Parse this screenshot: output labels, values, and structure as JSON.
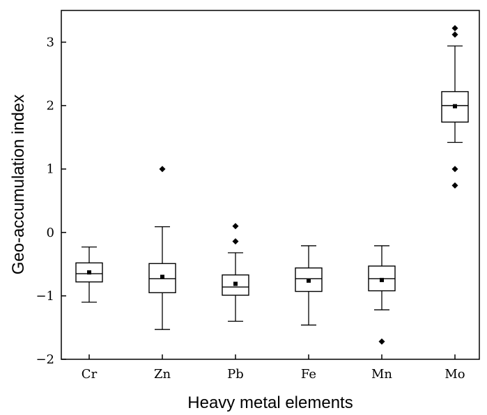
{
  "chart_data": {
    "type": "boxplot",
    "title": "",
    "xlabel": "Heavy metal elements",
    "ylabel": "Geo-accumulation index",
    "ylim": [
      -2,
      3.5
    ],
    "yticks": [
      -2,
      -1,
      0,
      1,
      2,
      3
    ],
    "ytick_labels": [
      "−2",
      "−1",
      "0",
      "1",
      "2",
      "3"
    ],
    "categories": [
      "Cr",
      "Zn",
      "Pb",
      "Fe",
      "Mn",
      "Mo"
    ],
    "boxes": [
      {
        "category": "Cr",
        "whisker_low": -1.1,
        "q1": -0.78,
        "median": -0.65,
        "q3": -0.48,
        "whisker_high": -0.23,
        "mean": -0.63,
        "outliers": []
      },
      {
        "category": "Zn",
        "whisker_low": -1.53,
        "q1": -0.95,
        "median": -0.73,
        "q3": -0.49,
        "whisker_high": 0.09,
        "mean": -0.7,
        "outliers": [
          1.0
        ]
      },
      {
        "category": "Pb",
        "whisker_low": -1.4,
        "q1": -0.99,
        "median": -0.86,
        "q3": -0.67,
        "whisker_high": -0.32,
        "mean": -0.81,
        "outliers": [
          0.1,
          -0.14
        ]
      },
      {
        "category": "Fe",
        "whisker_low": -1.46,
        "q1": -0.93,
        "median": -0.73,
        "q3": -0.56,
        "whisker_high": -0.21,
        "mean": -0.76,
        "outliers": []
      },
      {
        "category": "Mn",
        "whisker_low": -1.22,
        "q1": -0.92,
        "median": -0.73,
        "q3": -0.53,
        "whisker_high": -0.21,
        "mean": -0.75,
        "outliers": [
          -1.72
        ]
      },
      {
        "category": "Mo",
        "whisker_low": 1.42,
        "q1": 1.74,
        "median": 2.0,
        "q3": 2.22,
        "whisker_high": 2.94,
        "mean": 1.99,
        "outliers": [
          3.22,
          3.12,
          1.0,
          0.74
        ]
      }
    ],
    "grid": false,
    "legend": "none",
    "box_color": "#000000"
  }
}
